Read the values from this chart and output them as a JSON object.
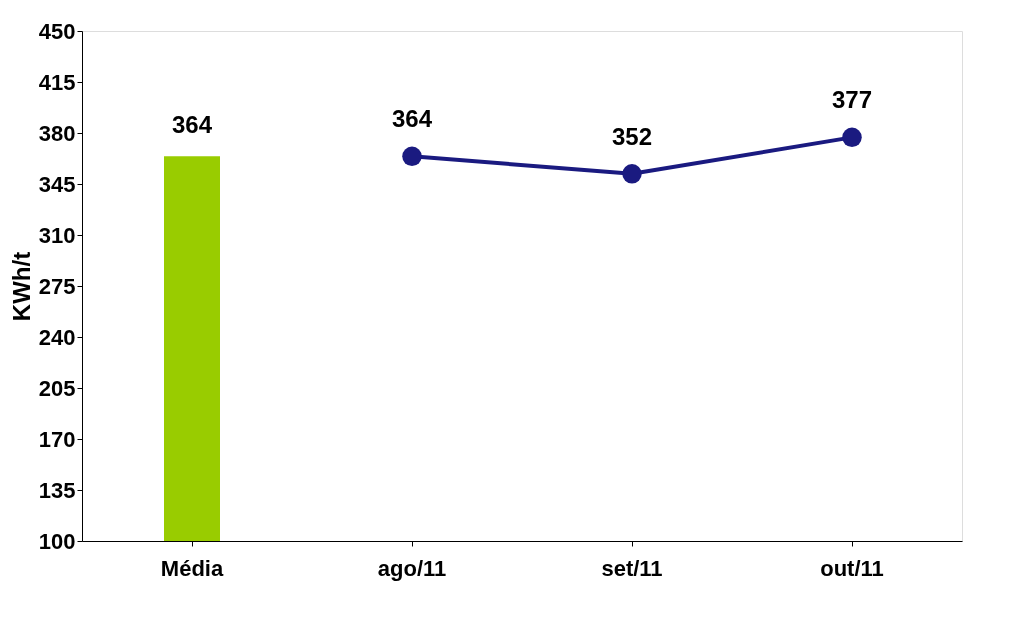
{
  "chart_data": {
    "type": "bar",
    "ylabel": "KWh/t",
    "categories": [
      "Média",
      "ago/11",
      "set/11",
      "out/11"
    ],
    "series": [
      {
        "color": "#99cc00",
        "values": [
          364,
          null,
          null,
          null
        ]
      },
      {
        "type": "line",
        "color": "#1a1a80",
        "values": [
          null,
          364,
          352,
          377
        ]
      }
    ],
    "ylim": [
      100,
      450
    ],
    "yticks": [
      100,
      135,
      170,
      205,
      240,
      275,
      310,
      345,
      380,
      415,
      450
    ],
    "grid": false,
    "data_labels": true,
    "marker": "circle",
    "line_style": "solid"
  }
}
